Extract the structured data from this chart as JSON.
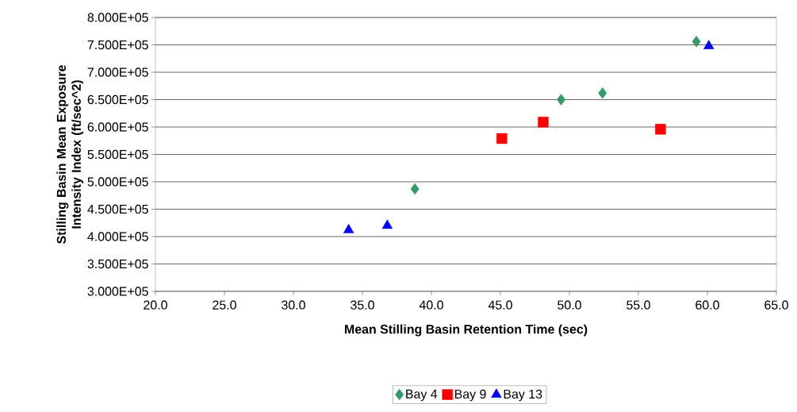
{
  "chart_data": {
    "type": "scatter",
    "xlabel": "Mean Stilling Basin Retention Time (sec)",
    "ylabel": "Stilling Basin Mean Exposure Intensity Index (ft/sec^2)",
    "series": [
      {
        "name": "Bay 4",
        "color": "#339966",
        "marker": "diamond",
        "x": [
          38.8,
          49.4,
          52.4,
          59.2
        ],
        "values": [
          487000,
          650000,
          662000,
          756000
        ]
      },
      {
        "name": "Bay 9",
        "color": "#ff0000",
        "marker": "square",
        "x": [
          45.1,
          48.1,
          56.6
        ],
        "values": [
          579000,
          609000,
          596000
        ]
      },
      {
        "name": "Bay 13",
        "color": "#0000ff",
        "marker": "triangle",
        "x": [
          34.0,
          36.8,
          60.1
        ],
        "values": [
          412000,
          420000,
          748000
        ]
      }
    ],
    "xlim": [
      20,
      65
    ],
    "ylim": [
      300000,
      800000
    ],
    "xticks": [
      {
        "value": 20,
        "label": "20.0"
      },
      {
        "value": 25,
        "label": "25.0"
      },
      {
        "value": 30,
        "label": "30.0"
      },
      {
        "value": 35,
        "label": "35.0"
      },
      {
        "value": 40,
        "label": "40.0"
      },
      {
        "value": 45,
        "label": "45.0"
      },
      {
        "value": 50,
        "label": "50.0"
      },
      {
        "value": 55,
        "label": "55.0"
      },
      {
        "value": 60,
        "label": "60.0"
      },
      {
        "value": 65,
        "label": "65.0"
      }
    ],
    "yticks": [
      {
        "value": 300000,
        "label": "3.000E+05"
      },
      {
        "value": 350000,
        "label": "3.500E+05"
      },
      {
        "value": 400000,
        "label": "4.000E+05"
      },
      {
        "value": 450000,
        "label": "4.500E+05"
      },
      {
        "value": 500000,
        "label": "5.000E+05"
      },
      {
        "value": 550000,
        "label": "5.500E+05"
      },
      {
        "value": 600000,
        "label": "6.000E+05"
      },
      {
        "value": 650000,
        "label": "6.500E+05"
      },
      {
        "value": 700000,
        "label": "7.000E+05"
      },
      {
        "value": 750000,
        "label": "7.500E+05"
      },
      {
        "value": 800000,
        "label": "8.000E+05"
      }
    ],
    "grid": "y",
    "legend": "bottom"
  }
}
